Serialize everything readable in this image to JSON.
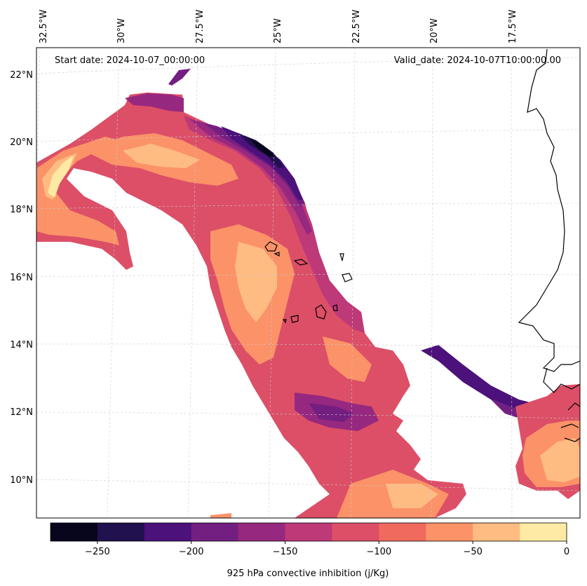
{
  "header": {
    "start_date": "Start date: 2024-10-07_00:00:00",
    "valid_date": "Valid_date: 2024-10-07T10:00:00.00"
  },
  "lon_labels": [
    "32.5°W",
    "30°W",
    "27.5°W",
    "25°W",
    "22.5°W",
    "20°W",
    "17.5°W"
  ],
  "lat_labels": [
    "22°N",
    "20°N",
    "18°N",
    "16°N",
    "14°N",
    "12°N",
    "10°N"
  ],
  "colorbar": {
    "label": "925 hPa convective inhibition (j/Kg)",
    "ticks": [
      "−250",
      "−200",
      "−150",
      "−100",
      "−50",
      "0"
    ],
    "levels": [
      -275,
      -250,
      -225,
      -200,
      -175,
      -150,
      -125,
      -100,
      -75,
      -50,
      -25,
      0
    ],
    "colors": [
      "#07061c",
      "#21114e",
      "#4c117a",
      "#731f81",
      "#97287f",
      "#bd3977",
      "#dc4f67",
      "#f06a5e",
      "#fb9268",
      "#febb82",
      "#feeaa4"
    ]
  },
  "colors": {
    "coastline": "#000000",
    "gridline": "#cccccc"
  }
}
